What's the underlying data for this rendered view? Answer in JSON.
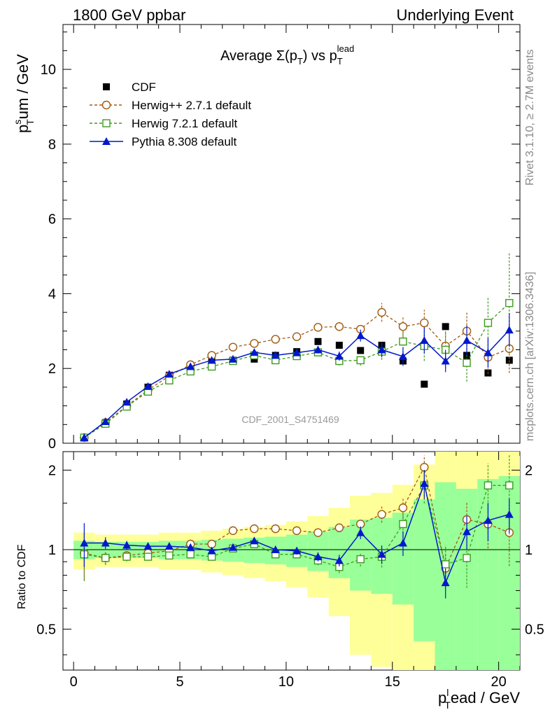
{
  "header": {
    "left": "1800 GeV ppbar",
    "right": "Underlying Event"
  },
  "side": {
    "rivet": "Rivet 3.1.10, ≥ 2.7M events",
    "mcplots": "mcplots.cern.ch [arXiv:1306.3436]"
  },
  "title": {
    "main": "Average Σ(p",
    "sub": "T",
    "mid": ") vs p",
    "sub2": "T",
    "sup2": "lead"
  },
  "watermark": "CDF_2001_S4751469",
  "ylabel": {
    "p": "p",
    "sup": "s",
    "sub": "T",
    "rest": "um / GeV"
  },
  "xlabel": {
    "p": "p",
    "sup": "l",
    "sub": "T",
    "rest": "ead / GeV"
  },
  "ratio_label": "Ratio to CDF",
  "chart_data": {
    "type": "scatter",
    "xlim": [
      -0.5,
      21.0
    ],
    "ylim_main": [
      0,
      11.2
    ],
    "ylim_ratio_log": [
      0.35,
      2.35
    ],
    "x_ticks": [
      "0",
      "5",
      "10",
      "15",
      "20"
    ],
    "y_ticks_main": [
      "0",
      "2",
      "4",
      "6",
      "8",
      "10"
    ],
    "y_ticks_ratio": [
      "0.5",
      "1",
      "2"
    ],
    "x": [
      0.5,
      1.5,
      2.5,
      3.5,
      4.5,
      5.5,
      6.5,
      7.5,
      8.5,
      9.5,
      10.5,
      11.5,
      12.5,
      13.5,
      14.5,
      15.5,
      16.5,
      17.5,
      18.5,
      19.5,
      20.5
    ],
    "series": [
      {
        "name": "CDF",
        "color": "#000000",
        "marker": "filled-square",
        "y": [
          0.15,
          0.55,
          1.05,
          1.5,
          1.82,
          2.05,
          2.2,
          2.22,
          2.25,
          2.35,
          2.45,
          2.72,
          2.62,
          2.48,
          2.62,
          2.2,
          1.58,
          3.12,
          2.35,
          1.88,
          2.22
        ],
        "ratio_band_err": [
          0.08,
          0.07,
          0.07,
          0.07,
          0.08,
          0.08,
          0.09,
          0.1,
          0.11,
          0.12,
          0.14,
          0.17,
          0.22,
          0.3,
          0.32,
          0.38,
          0.55,
          0.8,
          0.7,
          0.85,
          0.9
        ]
      },
      {
        "name": "Herwig++ 2.7.1 default",
        "color": "#a05a10",
        "marker": "open-circle",
        "y": [
          0.15,
          0.55,
          1.0,
          1.42,
          1.8,
          2.1,
          2.35,
          2.57,
          2.67,
          2.78,
          2.85,
          3.1,
          3.12,
          3.05,
          3.5,
          3.12,
          3.22,
          2.6,
          3.0,
          2.3,
          2.53
        ],
        "err": [
          0.03,
          0.03,
          0.04,
          0.04,
          0.05,
          0.05,
          0.06,
          0.06,
          0.07,
          0.07,
          0.08,
          0.1,
          0.12,
          0.14,
          0.25,
          0.28,
          0.35,
          0.35,
          0.5,
          0.45,
          0.65
        ],
        "ratio": [
          0.97,
          0.93,
          0.95,
          0.97,
          0.99,
          1.05,
          1.05,
          1.18,
          1.2,
          1.2,
          1.18,
          1.16,
          1.21,
          1.25,
          1.36,
          1.44,
          2.05,
          0.85,
          1.3,
          1.25,
          1.16
        ]
      },
      {
        "name": "Herwig 7.2.1 default",
        "color": "#3c9c1e",
        "marker": "open-square",
        "y": [
          0.15,
          0.52,
          0.98,
          1.38,
          1.68,
          1.92,
          2.05,
          2.2,
          2.35,
          2.22,
          2.33,
          2.43,
          2.2,
          2.22,
          2.45,
          2.72,
          2.6,
          2.5,
          2.15,
          3.22,
          3.75
        ],
        "err": [
          0.03,
          0.03,
          0.04,
          0.04,
          0.05,
          0.05,
          0.06,
          0.06,
          0.07,
          0.07,
          0.08,
          0.1,
          0.12,
          0.14,
          0.22,
          0.3,
          0.4,
          0.5,
          0.5,
          0.7,
          1.35
        ],
        "ratio": [
          0.96,
          0.93,
          0.94,
          0.94,
          0.95,
          0.96,
          0.94,
          1.01,
          1.05,
          0.96,
          0.96,
          0.91,
          0.86,
          0.92,
          0.94,
          1.25,
          1.75,
          0.88,
          0.93,
          1.75,
          1.75
        ]
      },
      {
        "name": "Pythia 8.308 default",
        "color": "#0018cc",
        "marker": "filled-triangle",
        "y": [
          0.15,
          0.58,
          1.1,
          1.52,
          1.85,
          2.05,
          2.22,
          2.25,
          2.43,
          2.35,
          2.42,
          2.5,
          2.33,
          2.88,
          2.5,
          2.32,
          2.75,
          2.2,
          2.75,
          2.42,
          3.03
        ],
        "err": [
          0.03,
          0.03,
          0.04,
          0.04,
          0.05,
          0.05,
          0.05,
          0.06,
          0.06,
          0.07,
          0.08,
          0.1,
          0.12,
          0.16,
          0.2,
          0.25,
          0.35,
          0.3,
          0.4,
          0.4,
          0.45
        ],
        "ratio": [
          1.06,
          1.06,
          1.04,
          1.03,
          1.03,
          1.02,
          0.99,
          1.02,
          1.08,
          1.0,
          0.99,
          0.94,
          0.91,
          1.16,
          0.96,
          1.06,
          1.78,
          0.75,
          1.17,
          1.29,
          1.36
        ]
      }
    ]
  }
}
